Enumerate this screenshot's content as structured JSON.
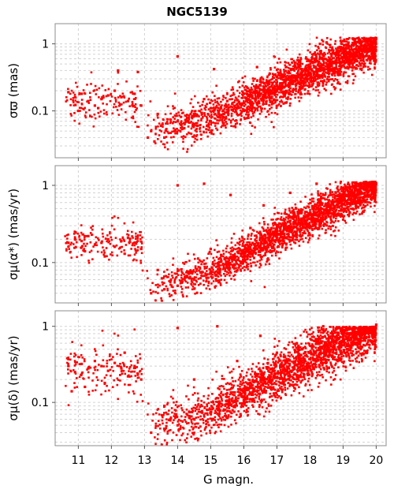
{
  "title": "NGC5139",
  "xlabel": "G magn.",
  "colors": {
    "points": "#ff0000",
    "grid": "#d2d2d2",
    "frame": "#8c8c8c"
  },
  "chart_data": [
    {
      "type": "scatter",
      "ylabel": "σϖ (mas)",
      "yscale": "log",
      "xlim": [
        10.3,
        20.3
      ],
      "ylim": [
        0.02,
        2.0
      ],
      "xticks": [
        "11",
        "12",
        "13",
        "14",
        "15",
        "16",
        "17",
        "18",
        "19",
        "20"
      ],
      "yticks": [
        "0.1",
        "1"
      ],
      "grid": true,
      "density_trend": {
        "points": [
          [
            10.7,
            0.14
          ],
          [
            12.9,
            0.14
          ],
          [
            13.2,
            0.05
          ],
          [
            14,
            0.06
          ],
          [
            15,
            0.08
          ],
          [
            16,
            0.13
          ],
          [
            17,
            0.22
          ],
          [
            18,
            0.38
          ],
          [
            19,
            0.6
          ],
          [
            20,
            0.95
          ]
        ],
        "spread_dex": 0.15
      },
      "series": [
        {
          "x": [
            10.7,
            10.9,
            11.1,
            11.3,
            11.5,
            11.7,
            11.9,
            12.1,
            12.3,
            12.5,
            12.7,
            12.9,
            11.0,
            11.6,
            12.2,
            12.8
          ],
          "y": [
            0.19,
            0.16,
            0.18,
            0.14,
            0.12,
            0.15,
            0.17,
            0.2,
            0.16,
            0.14,
            0.18,
            0.12,
            0.1,
            0.11,
            0.4,
            0.38
          ]
        },
        {
          "x": [
            13.1,
            13.3,
            13.6,
            13.9,
            14.2,
            14.6,
            15.0,
            15.4,
            15.8,
            16.2,
            16.6,
            17.0,
            17.4,
            17.8,
            18.2,
            18.6,
            19.0,
            19.4,
            19.8
          ],
          "y": [
            0.04,
            0.035,
            0.04,
            0.05,
            0.055,
            0.06,
            0.07,
            0.09,
            0.11,
            0.13,
            0.17,
            0.21,
            0.27,
            0.34,
            0.42,
            0.52,
            0.63,
            0.78,
            0.95
          ]
        },
        {
          "x": [
            13.2,
            13.5,
            14.0,
            14.5,
            15.0,
            15.5,
            16.0,
            16.5,
            17.0,
            17.5,
            18.0,
            18.3,
            18.5,
            19.0,
            19.5,
            20.0
          ],
          "y": [
            0.05,
            0.06,
            0.07,
            0.09,
            0.11,
            0.14,
            0.18,
            0.24,
            0.32,
            0.42,
            0.55,
            1.0,
            1.05,
            1.1,
            1.15,
            1.2
          ]
        },
        {
          "x": [
            14.0,
            15.1,
            16.4,
            17.7,
            18.9,
            13.4,
            14.8,
            16.0,
            17.2,
            19.4
          ],
          "y": [
            0.65,
            0.42,
            0.45,
            0.55,
            0.9,
            0.09,
            0.15,
            0.1,
            0.18,
            0.55
          ]
        }
      ]
    },
    {
      "type": "scatter",
      "ylabel": "σμ(α*) (mas/yr)",
      "yscale": "log",
      "xlim": [
        10.3,
        20.3
      ],
      "ylim": [
        0.03,
        1.8
      ],
      "xticks": [
        "11",
        "12",
        "13",
        "14",
        "15",
        "16",
        "17",
        "18",
        "19",
        "20"
      ],
      "yticks": [
        "0.1",
        "1"
      ],
      "grid": true,
      "density_trend": {
        "points": [
          [
            10.7,
            0.18
          ],
          [
            12.9,
            0.17
          ],
          [
            13.2,
            0.045
          ],
          [
            14,
            0.055
          ],
          [
            15,
            0.08
          ],
          [
            16,
            0.13
          ],
          [
            17,
            0.22
          ],
          [
            18,
            0.38
          ],
          [
            19,
            0.62
          ],
          [
            20,
            1.0
          ]
        ],
        "spread_dex": 0.12
      },
      "series": [
        {
          "x": [
            10.7,
            10.9,
            11.1,
            11.3,
            11.5,
            11.7,
            11.9,
            12.1,
            12.3,
            12.5,
            12.7,
            12.9,
            11.2,
            11.8,
            12.4
          ],
          "y": [
            0.18,
            0.2,
            0.19,
            0.22,
            0.17,
            0.18,
            0.2,
            0.16,
            0.19,
            0.21,
            0.18,
            0.15,
            0.14,
            0.12,
            0.13
          ]
        },
        {
          "x": [
            13.2,
            13.6,
            14.0,
            14.5,
            15.0,
            15.5,
            16.0,
            16.5,
            17.0,
            17.5,
            18.0,
            18.5,
            19.0,
            19.5,
            20.0
          ],
          "y": [
            0.04,
            0.045,
            0.05,
            0.06,
            0.075,
            0.095,
            0.12,
            0.16,
            0.21,
            0.28,
            0.37,
            0.5,
            0.66,
            0.85,
            1.05
          ]
        },
        {
          "x": [
            14.0,
            14.8,
            15.6,
            16.6,
            17.4,
            18.2,
            13.4,
            15.0,
            16.2
          ],
          "y": [
            1.0,
            1.05,
            0.75,
            0.55,
            0.8,
            1.05,
            0.08,
            0.15,
            0.28
          ]
        }
      ]
    },
    {
      "type": "scatter",
      "ylabel": "σμ(δ) (mas/yr)",
      "yscale": "log",
      "xlim": [
        10.3,
        20.3
      ],
      "ylim": [
        0.027,
        1.6
      ],
      "xticks": [
        "11",
        "12",
        "13",
        "14",
        "15",
        "16",
        "17",
        "18",
        "19",
        "20"
      ],
      "yticks": [
        "0.1",
        "1"
      ],
      "grid": true,
      "density_trend": {
        "points": [
          [
            10.7,
            0.28
          ],
          [
            12.9,
            0.26
          ],
          [
            13.2,
            0.045
          ],
          [
            14,
            0.055
          ],
          [
            15,
            0.08
          ],
          [
            16,
            0.13
          ],
          [
            17,
            0.22
          ],
          [
            18,
            0.38
          ],
          [
            19,
            0.62
          ],
          [
            20,
            1.0
          ]
        ],
        "spread_dex": 0.16
      },
      "series": [
        {
          "x": [
            10.7,
            10.9,
            11.1,
            11.3,
            11.5,
            11.7,
            11.9,
            12.1,
            12.3,
            12.5,
            12.7,
            12.9,
            11.2,
            11.8,
            12.4,
            10.8
          ],
          "y": [
            0.3,
            0.25,
            0.32,
            0.28,
            0.35,
            0.3,
            0.26,
            0.33,
            0.28,
            0.22,
            0.3,
            0.2,
            0.16,
            0.18,
            0.45,
            0.14
          ]
        },
        {
          "x": [
            13.2,
            13.6,
            14.0,
            14.5,
            15.0,
            15.5,
            16.0,
            16.5,
            17.0,
            17.5,
            18.0,
            18.5,
            19.0,
            19.5,
            20.0
          ],
          "y": [
            0.04,
            0.045,
            0.05,
            0.06,
            0.075,
            0.095,
            0.12,
            0.16,
            0.21,
            0.28,
            0.37,
            0.5,
            0.66,
            0.85,
            1.05
          ]
        },
        {
          "x": [
            14.0,
            15.2,
            16.5,
            17.6,
            18.4,
            13.6,
            14.5,
            15.8,
            17.0
          ],
          "y": [
            0.95,
            1.0,
            0.75,
            0.6,
            1.0,
            0.09,
            0.2,
            0.35,
            0.45
          ]
        }
      ]
    }
  ]
}
